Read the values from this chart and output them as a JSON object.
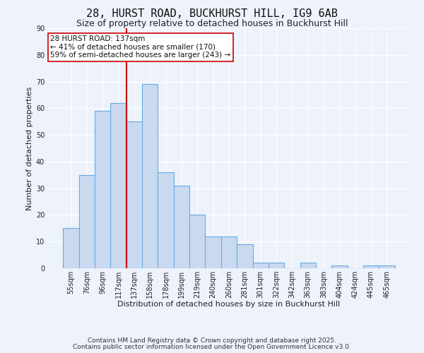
{
  "title": "28, HURST ROAD, BUCKHURST HILL, IG9 6AB",
  "subtitle": "Size of property relative to detached houses in Buckhurst Hill",
  "xlabel": "Distribution of detached houses by size in Buckhurst Hill",
  "ylabel": "Number of detached properties",
  "bar_labels": [
    "55sqm",
    "76sqm",
    "96sqm",
    "117sqm",
    "137sqm",
    "158sqm",
    "178sqm",
    "199sqm",
    "219sqm",
    "240sqm",
    "260sqm",
    "281sqm",
    "301sqm",
    "322sqm",
    "342sqm",
    "363sqm",
    "383sqm",
    "404sqm",
    "424sqm",
    "445sqm",
    "465sqm"
  ],
  "bar_values": [
    15,
    35,
    59,
    62,
    55,
    69,
    36,
    31,
    20,
    12,
    12,
    9,
    2,
    2,
    0,
    2,
    0,
    1,
    0,
    1,
    1
  ],
  "bar_color": "#c9d9f0",
  "bar_edgecolor": "#6aabe0",
  "vline_color": "#cc0000",
  "annotation_title": "28 HURST ROAD: 137sqm",
  "annotation_line1": "← 41% of detached houses are smaller (170)",
  "annotation_line2": "59% of semi-detached houses are larger (243) →",
  "annotation_box_edgecolor": "#cc0000",
  "annotation_box_facecolor": "#ffffff",
  "ylim": [
    0,
    90
  ],
  "yticks": [
    0,
    10,
    20,
    30,
    40,
    50,
    60,
    70,
    80,
    90
  ],
  "footnote1": "Contains HM Land Registry data © Crown copyright and database right 2025.",
  "footnote2": "Contains public sector information licensed under the Open Government Licence v3.0.",
  "bg_color": "#edf2fb",
  "grid_color": "#ffffff",
  "title_fontsize": 11,
  "subtitle_fontsize": 9,
  "axis_label_fontsize": 8,
  "tick_fontsize": 7,
  "annotation_fontsize": 7.5,
  "footnote_fontsize": 6.5
}
